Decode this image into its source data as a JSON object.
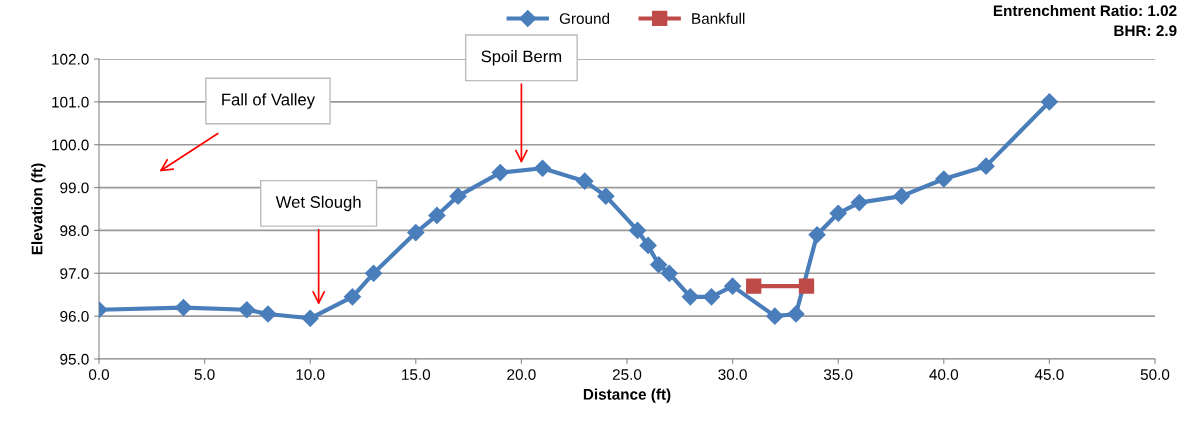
{
  "chart_data": {
    "type": "line",
    "xlabel": "Distance (ft)",
    "ylabel": "Elevation (ft)",
    "series": [
      {
        "name": "Ground",
        "color": "#4a7ebb",
        "marker": "diamond",
        "x": [
          0,
          4,
          7,
          8,
          10,
          12,
          13,
          15,
          16,
          17,
          19,
          21,
          23,
          24,
          25.5,
          26,
          26.5,
          27,
          28,
          29,
          30,
          32,
          33,
          34,
          35,
          36,
          38,
          40,
          42,
          45
        ],
        "values": [
          96.15,
          96.2,
          96.15,
          96.05,
          95.95,
          96.45,
          97.0,
          97.95,
          98.35,
          98.8,
          99.35,
          99.45,
          99.15,
          98.8,
          98.0,
          97.65,
          97.2,
          97.0,
          96.45,
          96.45,
          96.7,
          96.0,
          96.05,
          97.9,
          98.4,
          98.65,
          98.8,
          99.2,
          99.5,
          101.0
        ]
      },
      {
        "name": "Bankfull",
        "color": "#be4b48",
        "marker": "square",
        "x": [
          31,
          33.5
        ],
        "values": [
          96.7,
          96.7
        ]
      }
    ],
    "xlim": [
      0,
      50
    ],
    "xticks": [
      {
        "value": 0,
        "label": "0.0"
      },
      {
        "value": 5,
        "label": "5.0"
      },
      {
        "value": 10,
        "label": "10.0"
      },
      {
        "value": 15,
        "label": "15.0"
      },
      {
        "value": 20,
        "label": "20.0"
      },
      {
        "value": 25,
        "label": "25.0"
      },
      {
        "value": 30,
        "label": "30.0"
      },
      {
        "value": 35,
        "label": "35.0"
      },
      {
        "value": 40,
        "label": "40.0"
      },
      {
        "value": 45,
        "label": "45.0"
      },
      {
        "value": 50,
        "label": "50.0"
      }
    ],
    "ylim": [
      95,
      102
    ],
    "yticks": [
      {
        "value": 95,
        "label": "95.0"
      },
      {
        "value": 96,
        "label": "96.0"
      },
      {
        "value": 97,
        "label": "97.0"
      },
      {
        "value": 98,
        "label": "98.0"
      },
      {
        "value": 99,
        "label": "99.0"
      },
      {
        "value": 100,
        "label": "100.0"
      },
      {
        "value": 101,
        "label": "101.0"
      },
      {
        "value": 102,
        "label": "102.0"
      }
    ],
    "grid": "y",
    "legend": "top",
    "line_style": "solid",
    "annotations": [
      "Fall of Valley",
      {
        "text": "Wet Slough",
        "x": 10.4,
        "y": 96.2
      },
      {
        "text": "Spoil Berm",
        "x": 20.0,
        "y": 99.5
      },
      "Entrenchment Ratio: 1.02",
      "BHR: 2.9"
    ]
  }
}
